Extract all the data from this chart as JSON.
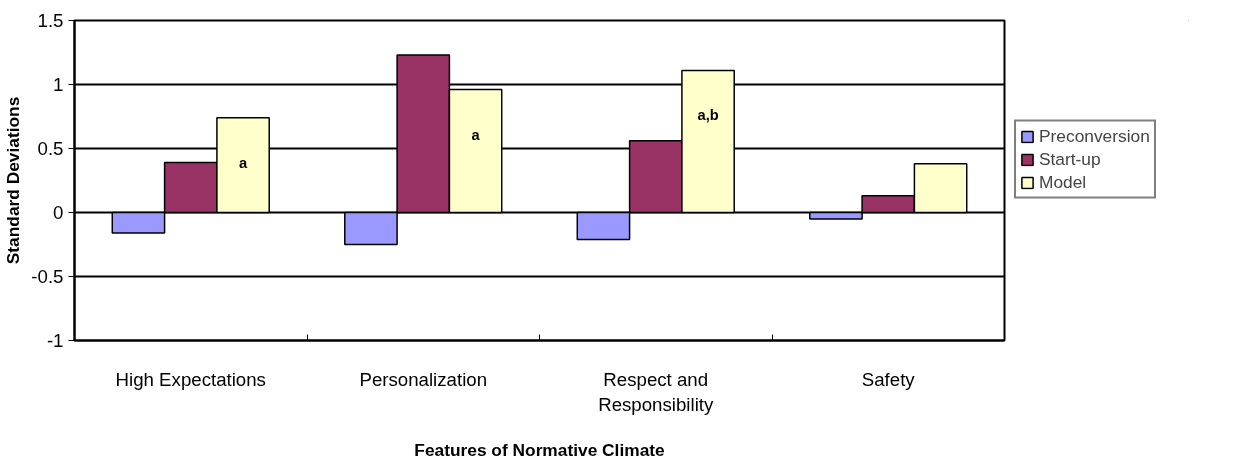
{
  "chart_data": {
    "type": "bar",
    "xlabel": "Features of Normative Climate",
    "ylabel": "Standard Deviations",
    "categories": [
      "High Expectations",
      "Personalization",
      "Respect and\nResponsibility",
      "Safety"
    ],
    "series": [
      {
        "name": "Preconversion",
        "color": "#9999ff",
        "values": [
          -0.16,
          -0.25,
          -0.21,
          -0.05
        ]
      },
      {
        "name": "Start-up",
        "color": "#993366",
        "values": [
          0.39,
          1.23,
          0.56,
          0.13
        ]
      },
      {
        "name": "Model",
        "color": "#ffffcc",
        "values": [
          0.74,
          0.96,
          1.11,
          0.38
        ]
      }
    ],
    "ylim": [
      -1,
      1.5
    ],
    "yticks": [
      -1,
      -0.5,
      0,
      0.5,
      1,
      1.5
    ],
    "grid": "y",
    "legend": "right",
    "annotations": [
      "a",
      "a",
      "a,b"
    ]
  }
}
